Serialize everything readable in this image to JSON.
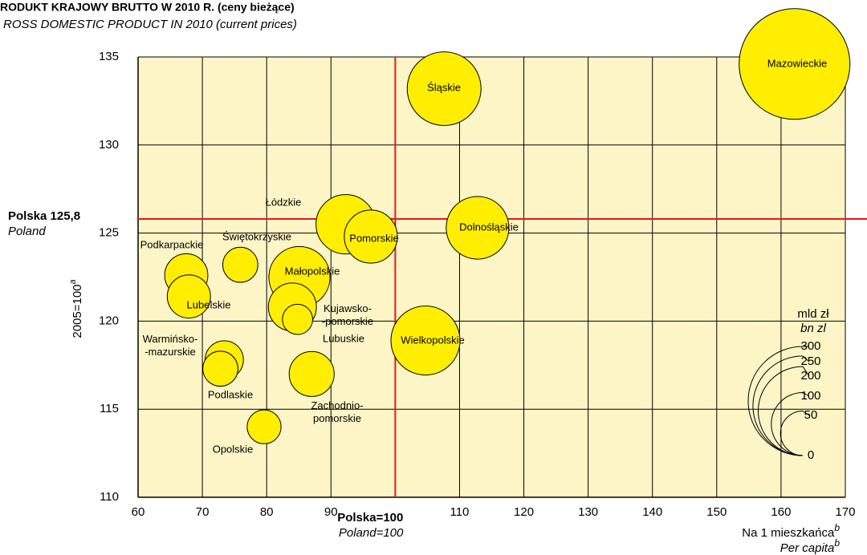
{
  "chart_data": {
    "type": "bubble",
    "title": "RODUKT KRAJOWY BRUTTO W 2010 R. (ceny bieżące)",
    "subtitle": "ROSS DOMESTIC PRODUCT IN 2010 (current prices)",
    "x_label": "Na 1 mieszkańca",
    "x_label_sup": "b",
    "x_label_en": "Per capita",
    "x_label_en_sup": "b",
    "y_label": "2005=100",
    "y_label_sup": "a",
    "labels": [
      "Mazowieckie",
      "Śląskie",
      "Łódzkie",
      "Pomorskie",
      "Dolnośląskie",
      "Podkarpackie",
      "Lubelskie",
      "Świętokrzyskie",
      "Małopolskie",
      "Kujawsko-\n-pomorskie",
      "Lubuskie",
      "Wielkopolskie",
      "Warmińsko-\n-mazurskie",
      "Podlaskie",
      "Zachodnio-\npomorskie",
      "Opolskie"
    ],
    "x": [
      162.1,
      107.6,
      92.3,
      96.2,
      112.8,
      67.5,
      67.9,
      75.9,
      85.1,
      84.0,
      84.8,
      104.7,
      73.4,
      72.8,
      87.0,
      79.6
    ],
    "values": [
      134.6,
      133.2,
      125.5,
      124.8,
      125.3,
      122.6,
      121.4,
      123.2,
      122.5,
      120.8,
      120.1,
      118.9,
      117.8,
      117.3,
      117.0,
      114.0
    ],
    "sizes": [
      309,
      137,
      89,
      71,
      99,
      47,
      47,
      31,
      94,
      58,
      23,
      120,
      37,
      31,
      51,
      29
    ],
    "color": "#ffee00",
    "xlim": [
      60,
      170
    ],
    "xticks": [
      60,
      70,
      80,
      90,
      110,
      120,
      130,
      140,
      150,
      160,
      170
    ],
    "ylim": [
      110,
      135
    ],
    "yticks": [
      110,
      115,
      120,
      125,
      130,
      135
    ],
    "grid": true,
    "reference_lines": [
      {
        "axis": "x",
        "value": 100,
        "label": "Polska=100",
        "sublabel": "Poland=100",
        "color": "#e8161b"
      },
      {
        "axis": "y",
        "value": 125.8,
        "label": "Polska 125,8",
        "sublabel": "Poland",
        "color": "#e8161b"
      }
    ],
    "size_legend": {
      "title": "mld zł",
      "subtitle": "bn zl",
      "values": [
        300,
        250,
        200,
        100,
        50,
        0
      ]
    }
  }
}
